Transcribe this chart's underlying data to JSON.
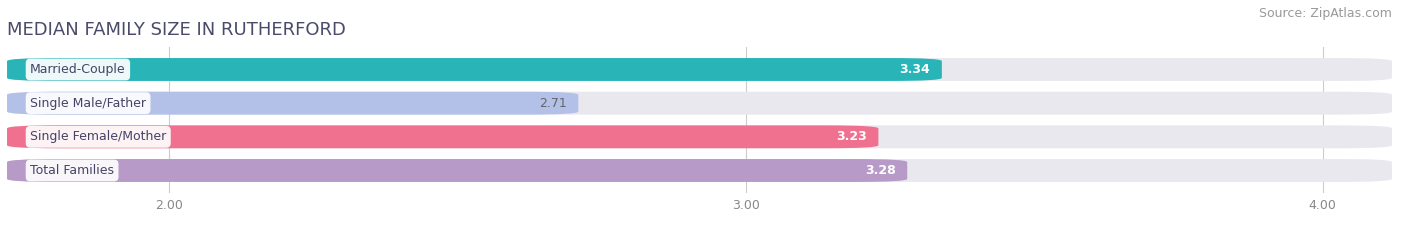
{
  "title": "MEDIAN FAMILY SIZE IN RUTHERFORD",
  "source": "Source: ZipAtlas.com",
  "categories": [
    "Married-Couple",
    "Single Male/Father",
    "Single Female/Mother",
    "Total Families"
  ],
  "values": [
    3.34,
    2.71,
    3.23,
    3.28
  ],
  "bar_colors": [
    "#29b5b8",
    "#b3c0e8",
    "#f07090",
    "#b89ac8"
  ],
  "bar_bg_color": "#e8e8ee",
  "value_text_colors": [
    "#ffffff",
    "#666666",
    "#ffffff",
    "#ffffff"
  ],
  "xlim_left": 1.72,
  "xlim_right": 4.12,
  "xticks": [
    2.0,
    3.0,
    4.0
  ],
  "xtick_labels": [
    "2.00",
    "3.00",
    "4.00"
  ],
  "title_fontsize": 13,
  "source_fontsize": 9,
  "label_fontsize": 9,
  "value_fontsize": 9,
  "background_color": "#ffffff",
  "title_color": "#4a4a6a",
  "source_color": "#999999"
}
